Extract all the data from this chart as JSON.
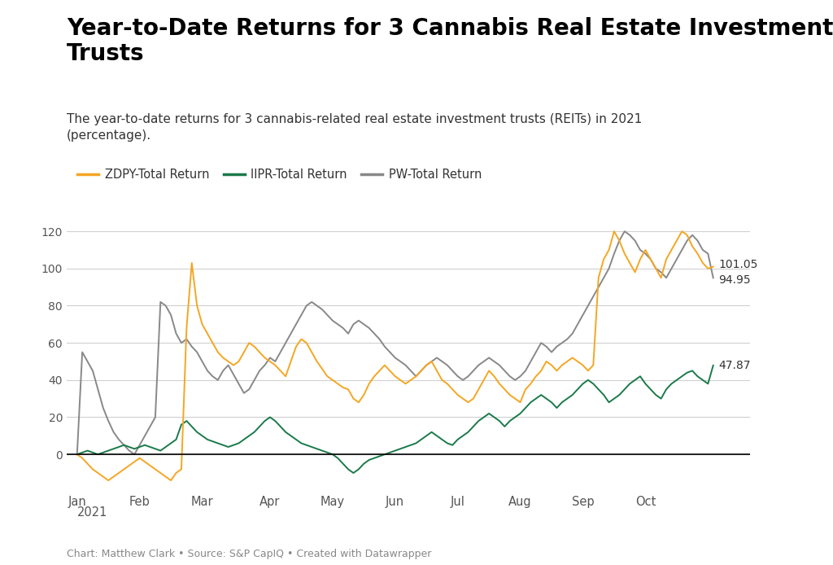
{
  "title": "Year-to-Date Returns for 3 Cannabis Real Estate Investment\nTrusts",
  "subtitle": "The year-to-date returns for 3 cannabis-related real estate investment trusts (REITs) in 2021\n(percentage).",
  "footnote": "Chart: Matthew Clark • Source: S&P CapIQ • Created with Datawrapper",
  "legend": [
    "ZDPY-Total Return",
    "IIPR-Total Return",
    "PW-Total Return"
  ],
  "colors": {
    "ZDPY": "#f5a623",
    "IIPR": "#1a7a4a",
    "PW": "#888888"
  },
  "end_labels": {
    "ZDPY": "101.05",
    "IIPR": "47.87",
    "PW": "94.95"
  },
  "ylim": [
    -20,
    132
  ],
  "yticks": [
    0,
    20,
    40,
    60,
    80,
    100,
    120
  ],
  "background": "#ffffff",
  "ZDPY": [
    0,
    -2,
    -5,
    -8,
    -10,
    -12,
    -14,
    -12,
    -10,
    -8,
    -6,
    -4,
    -2,
    -4,
    -6,
    -8,
    -10,
    -12,
    -14,
    -10,
    -8,
    68,
    103,
    80,
    70,
    65,
    60,
    55,
    52,
    50,
    48,
    50,
    55,
    60,
    58,
    55,
    52,
    50,
    48,
    45,
    42,
    50,
    58,
    62,
    60,
    55,
    50,
    46,
    42,
    40,
    38,
    36,
    35,
    30,
    28,
    32,
    38,
    42,
    45,
    48,
    45,
    42,
    40,
    38,
    40,
    42,
    45,
    48,
    50,
    45,
    40,
    38,
    35,
    32,
    30,
    28,
    30,
    35,
    40,
    45,
    42,
    38,
    35,
    32,
    30,
    28,
    35,
    38,
    42,
    45,
    50,
    48,
    45,
    48,
    50,
    52,
    50,
    48,
    45,
    48,
    95,
    105,
    110,
    120,
    115,
    108,
    103,
    98,
    105,
    110,
    105,
    100,
    95,
    105,
    110,
    115,
    120,
    118,
    112,
    108,
    103,
    100,
    101
  ],
  "IIPR": [
    0,
    1,
    2,
    1,
    0,
    1,
    2,
    3,
    4,
    5,
    4,
    3,
    4,
    5,
    4,
    3,
    2,
    4,
    6,
    8,
    16,
    18,
    15,
    12,
    10,
    8,
    7,
    6,
    5,
    4,
    5,
    6,
    8,
    10,
    12,
    15,
    18,
    20,
    18,
    15,
    12,
    10,
    8,
    6,
    5,
    4,
    3,
    2,
    1,
    0,
    -2,
    -5,
    -8,
    -10,
    -8,
    -5,
    -3,
    -2,
    -1,
    0,
    1,
    2,
    3,
    4,
    5,
    6,
    8,
    10,
    12,
    10,
    8,
    6,
    5,
    8,
    10,
    12,
    15,
    18,
    20,
    22,
    20,
    18,
    15,
    18,
    20,
    22,
    25,
    28,
    30,
    32,
    30,
    28,
    25,
    28,
    30,
    32,
    35,
    38,
    40,
    38,
    35,
    32,
    28,
    30,
    32,
    35,
    38,
    40,
    42,
    38,
    35,
    32,
    30,
    35,
    38,
    40,
    42,
    44,
    45,
    42,
    40,
    38,
    47.87
  ],
  "PW": [
    0,
    55,
    50,
    45,
    35,
    25,
    18,
    12,
    8,
    5,
    2,
    0,
    5,
    10,
    15,
    20,
    82,
    80,
    75,
    65,
    60,
    62,
    58,
    55,
    50,
    45,
    42,
    40,
    45,
    48,
    43,
    38,
    33,
    35,
    40,
    45,
    48,
    52,
    50,
    55,
    60,
    65,
    70,
    75,
    80,
    82,
    80,
    78,
    75,
    72,
    70,
    68,
    65,
    70,
    72,
    70,
    68,
    65,
    62,
    58,
    55,
    52,
    50,
    48,
    45,
    42,
    45,
    48,
    50,
    52,
    50,
    48,
    45,
    42,
    40,
    42,
    45,
    48,
    50,
    52,
    50,
    48,
    45,
    42,
    40,
    42,
    45,
    50,
    55,
    60,
    58,
    55,
    58,
    60,
    62,
    65,
    70,
    75,
    80,
    85,
    90,
    95,
    100,
    108,
    115,
    120,
    118,
    115,
    110,
    108,
    105,
    100,
    98,
    95,
    100,
    105,
    110,
    115,
    118,
    115,
    110,
    108,
    94.95
  ]
}
